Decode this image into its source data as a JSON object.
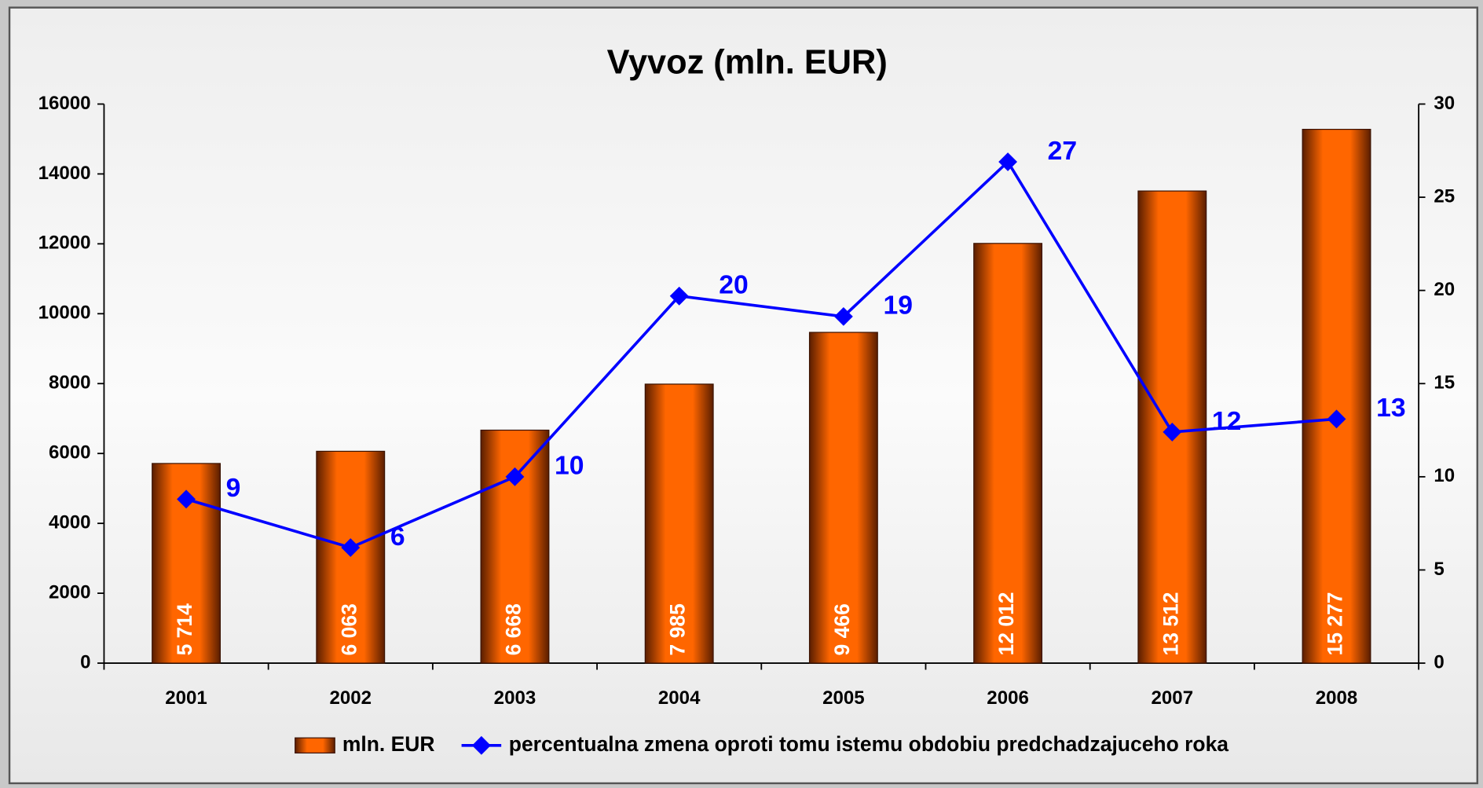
{
  "chart_data": {
    "type": "bar",
    "title": "Vyvoz (mln. EUR)",
    "categories": [
      "2001",
      "2002",
      "2003",
      "2004",
      "2005",
      "2006",
      "2007",
      "2008"
    ],
    "series": [
      {
        "name": "mln. EUR",
        "type": "bar",
        "color": "#ff6600",
        "values": [
          5714,
          6063,
          6668,
          7985,
          9466,
          12012,
          13512,
          15277
        ],
        "value_labels": [
          "5 714",
          "6 063",
          "6 668",
          "7 985",
          "9 466",
          "12 012",
          "13 512",
          "15 277"
        ]
      },
      {
        "name": "percentualna zmena oproti tomu istemu obdobiu predchadzajuceho roka",
        "type": "line",
        "axis": "y2",
        "color": "#0000ff",
        "values": [
          8.8,
          6.2,
          10,
          19.7,
          18.6,
          26.9,
          12.4,
          13.1
        ],
        "value_labels": [
          "9",
          "6",
          "10",
          "20",
          "19",
          "27",
          "12",
          "13"
        ]
      }
    ],
    "ylim": [
      0,
      16000
    ],
    "yticks": [
      0,
      2000,
      4000,
      6000,
      8000,
      10000,
      12000,
      14000,
      16000
    ],
    "y2lim": [
      0,
      30
    ],
    "y2ticks": [
      0,
      5,
      10,
      15,
      20,
      25,
      30
    ]
  }
}
